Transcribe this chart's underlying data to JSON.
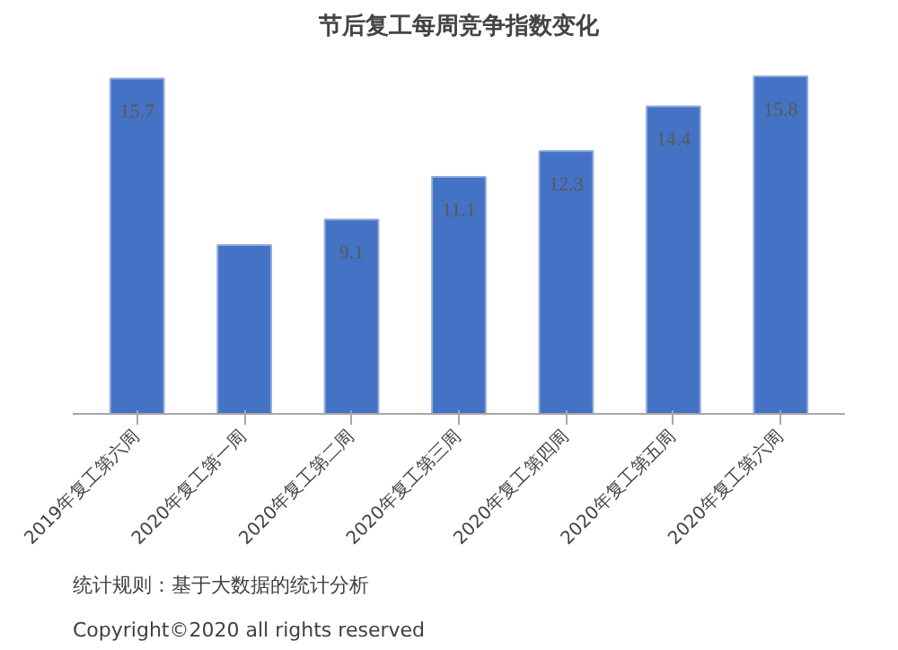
{
  "chart_data": {
    "type": "bar",
    "title": "节后复工每周竞争指数变化",
    "categories": [
      "2019年复工第六周",
      "2020年复工第一周",
      "2020年复工第二周",
      "2020年复工第三周",
      "2020年复工第四周",
      "2020年复工第五周",
      "2020年复工第六周"
    ],
    "values": [
      15.7,
      7.9,
      9.1,
      11.1,
      12.3,
      14.4,
      15.8
    ],
    "value_labels": [
      "15.7",
      null,
      "9.1",
      "11.1",
      "12.3",
      "14.4",
      "15.8"
    ],
    "color": "#4472c4",
    "tick_labels": "x",
    "grid": false,
    "annotations": [
      "统计规则：基于大数据的统计分析",
      "Copyright©2020 all rights reserved"
    ]
  }
}
